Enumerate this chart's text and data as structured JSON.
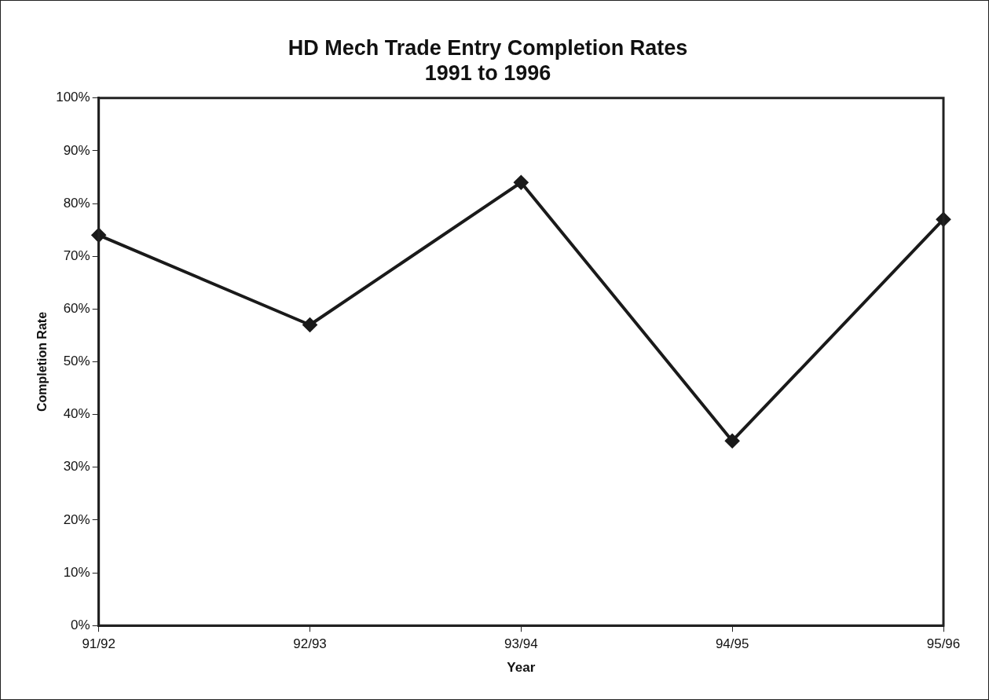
{
  "chart_data": {
    "type": "line",
    "title": "HD Mech Trade Entry Completion Rates\n1991 to 1996",
    "xlabel": "Year",
    "ylabel": "Completion Rate",
    "categories": [
      "91/92",
      "92/93",
      "93/94",
      "94/95",
      "95/96"
    ],
    "series": [
      {
        "color": "#1a1a1a",
        "values": [
          0.74,
          0.57,
          0.84,
          0.35,
          0.77
        ]
      }
    ],
    "ylim": [
      0,
      1
    ],
    "yticks": [
      {
        "value": 0,
        "label": "0%"
      },
      {
        "value": 0.1,
        "label": "10%"
      },
      {
        "value": 0.2,
        "label": "20%"
      },
      {
        "value": 0.3,
        "label": "30%"
      },
      {
        "value": 0.4,
        "label": "40%"
      },
      {
        "value": 0.5,
        "label": "50%"
      },
      {
        "value": 0.6,
        "label": "60%"
      },
      {
        "value": 0.7,
        "label": "70%"
      },
      {
        "value": 0.8,
        "label": "80%"
      },
      {
        "value": 0.9,
        "label": "90%"
      },
      {
        "value": 1,
        "label": "100%"
      }
    ],
    "grid": false,
    "legend": false,
    "marker": "diamond",
    "line_style": "solid"
  }
}
